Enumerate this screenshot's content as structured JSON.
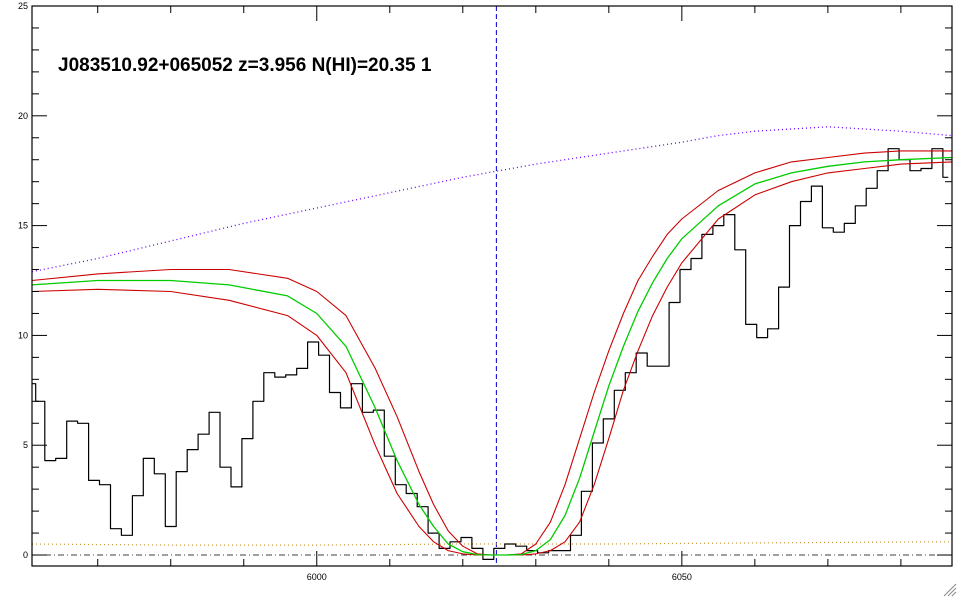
{
  "chart_data": {
    "type": "line",
    "title": "J083510.92+065052 z=3.956 N(HI)=20.35 1",
    "xlabel": "",
    "ylabel": "",
    "xlim": [
      5961,
      6087
    ],
    "ylim": [
      -0.5,
      25
    ],
    "x_ticks": [
      6000,
      6050
    ],
    "y_ticks": [
      0,
      5,
      10,
      15,
      20,
      25
    ],
    "grid": false,
    "colors": {
      "flux": "#000000",
      "fit": "#00cc00",
      "fit_bounds": "#cc0000",
      "continuum": "#6600ff",
      "error": "#cc9933",
      "zero_line": "#000000",
      "center_line": "#0000cc"
    },
    "center_wavelength": 6024.6,
    "series": [
      {
        "kind": "flux",
        "x": [
          5961.0,
          5962.0,
          5963.5,
          5965.0,
          5966.5,
          5968.0,
          5969.5,
          5971.0,
          5972.5,
          5974.0,
          5975.5,
          5977.0,
          5978.5,
          5980.0,
          5981.5,
          5983.0,
          5984.5,
          5986.0,
          5987.5,
          5989.0,
          5990.5,
          5992.0,
          5993.5,
          5995.0,
          5996.5,
          5998.0,
          5999.5,
          6001.0,
          6002.5,
          6004.0,
          6005.5,
          6007.0,
          6008.5,
          6010.0,
          6011.5,
          6013.0,
          6014.5,
          6016.0,
          6017.5,
          6019.0,
          6020.5,
          6022.0,
          6023.5,
          6025.0,
          6026.5,
          6028.0,
          6029.5,
          6031.0,
          6032.5,
          6034.0,
          6035.5,
          6037.0,
          6038.5,
          6040.0,
          6041.5,
          6043.0,
          6044.5,
          6046.0,
          6047.5,
          6049.0,
          6050.5,
          6052.0,
          6053.5,
          6055.0,
          6056.5,
          6058.0,
          6059.5,
          6061.0,
          6062.5,
          6064.0,
          6065.5,
          6067.0,
          6068.5,
          6070.0,
          6071.5,
          6073.0,
          6074.5,
          6076.0,
          6077.5,
          6079.0,
          6080.5,
          6082.0,
          6083.5,
          6085.0,
          6086.5
        ],
        "y": [
          7.8,
          7.0,
          4.3,
          4.4,
          6.1,
          6.0,
          3.4,
          3.2,
          1.2,
          0.9,
          2.7,
          4.4,
          3.7,
          1.3,
          3.8,
          4.8,
          5.5,
          6.5,
          4.0,
          3.1,
          5.3,
          7.0,
          8.3,
          8.1,
          8.2,
          8.5,
          9.7,
          9.1,
          7.4,
          6.7,
          7.8,
          6.5,
          6.6,
          4.5,
          3.2,
          2.8,
          2.2,
          1.0,
          0.3,
          0.6,
          0.8,
          0.3,
          -0.2,
          0.3,
          0.5,
          0.4,
          0.2,
          0.1,
          0.2,
          0.2,
          0.9,
          2.9,
          5.1,
          6.2,
          7.5,
          8.3,
          9.2,
          8.6,
          8.6,
          11.5,
          13.0,
          13.5,
          14.6,
          15.0,
          15.5,
          13.9,
          10.5,
          9.9,
          10.3,
          12.2,
          15.0,
          16.1,
          16.8,
          14.9,
          14.7,
          15.1,
          15.9,
          16.7,
          17.5,
          18.5,
          18.0,
          17.5,
          17.6,
          18.5,
          17.2
        ]
      },
      {
        "kind": "fit",
        "x": [
          5961,
          5970,
          5980,
          5988,
          5996,
          6000,
          6004,
          6008,
          6011,
          6014,
          6016,
          6018,
          6020,
          6022,
          6024,
          6026,
          6028,
          6030,
          6032,
          6034,
          6036,
          6038,
          6040,
          6042,
          6044,
          6046,
          6048,
          6050,
          6055,
          6060,
          6065,
          6070,
          6075,
          6080,
          6087
        ],
        "y": [
          12.3,
          12.5,
          12.5,
          12.3,
          11.8,
          11.0,
          9.5,
          6.7,
          4.3,
          2.3,
          1.3,
          0.5,
          0.15,
          0.02,
          0.0,
          0.0,
          0.02,
          0.2,
          0.7,
          1.8,
          3.5,
          5.6,
          7.7,
          9.5,
          11.1,
          12.4,
          13.5,
          14.4,
          15.9,
          16.9,
          17.4,
          17.7,
          17.9,
          18.0,
          18.1
        ]
      },
      {
        "kind": "fit-upper",
        "x": [
          5961,
          5970,
          5980,
          5988,
          5996,
          6000,
          6004,
          6008,
          6011,
          6014,
          6016,
          6018,
          6020,
          6022,
          6024,
          6026,
          6028,
          6030,
          6032,
          6034,
          6036,
          6038,
          6040,
          6042,
          6044,
          6046,
          6048,
          6050,
          6055,
          6060,
          6065,
          6070,
          6075,
          6080,
          6087
        ],
        "y": [
          12.5,
          12.8,
          13.0,
          13.0,
          12.6,
          12.0,
          10.9,
          8.5,
          6.3,
          3.8,
          2.3,
          1.1,
          0.4,
          0.05,
          0.0,
          0.0,
          0.05,
          0.5,
          1.5,
          3.2,
          5.3,
          7.4,
          9.3,
          11.0,
          12.5,
          13.6,
          14.6,
          15.3,
          16.6,
          17.4,
          17.9,
          18.1,
          18.3,
          18.4,
          18.4
        ]
      },
      {
        "kind": "fit-lower",
        "x": [
          5961,
          5970,
          5980,
          5988,
          5996,
          6000,
          6004,
          6008,
          6011,
          6014,
          6016,
          6018,
          6020,
          6022,
          6024,
          6026,
          6028,
          6030,
          6032,
          6034,
          6036,
          6038,
          6040,
          6042,
          6044,
          6046,
          6048,
          6050,
          6055,
          6060,
          6065,
          6070,
          6075,
          6080,
          6087
        ],
        "y": [
          12.0,
          12.1,
          12.0,
          11.6,
          10.9,
          10.0,
          8.3,
          5.0,
          2.8,
          1.3,
          0.6,
          0.2,
          0.05,
          0.0,
          0.0,
          0.0,
          0.0,
          0.05,
          0.2,
          0.6,
          1.5,
          3.2,
          5.3,
          7.5,
          9.3,
          10.9,
          12.2,
          13.3,
          15.3,
          16.4,
          17.0,
          17.4,
          17.6,
          17.8,
          17.9
        ]
      },
      {
        "kind": "continuum",
        "x": [
          5961,
          5970,
          5980,
          5990,
          6000,
          6010,
          6020,
          6030,
          6040,
          6050,
          6055,
          6060,
          6065,
          6070,
          6075,
          6080,
          6087
        ],
        "y": [
          12.9,
          13.5,
          14.3,
          15.1,
          15.8,
          16.5,
          17.2,
          17.8,
          18.3,
          18.8,
          19.1,
          19.3,
          19.4,
          19.5,
          19.4,
          19.3,
          19.1
        ]
      },
      {
        "kind": "error",
        "x": [
          5961,
          5980,
          6000,
          6020,
          6040,
          6060,
          6087
        ],
        "y": [
          0.5,
          0.45,
          0.45,
          0.5,
          0.5,
          0.55,
          0.6
        ]
      }
    ]
  }
}
